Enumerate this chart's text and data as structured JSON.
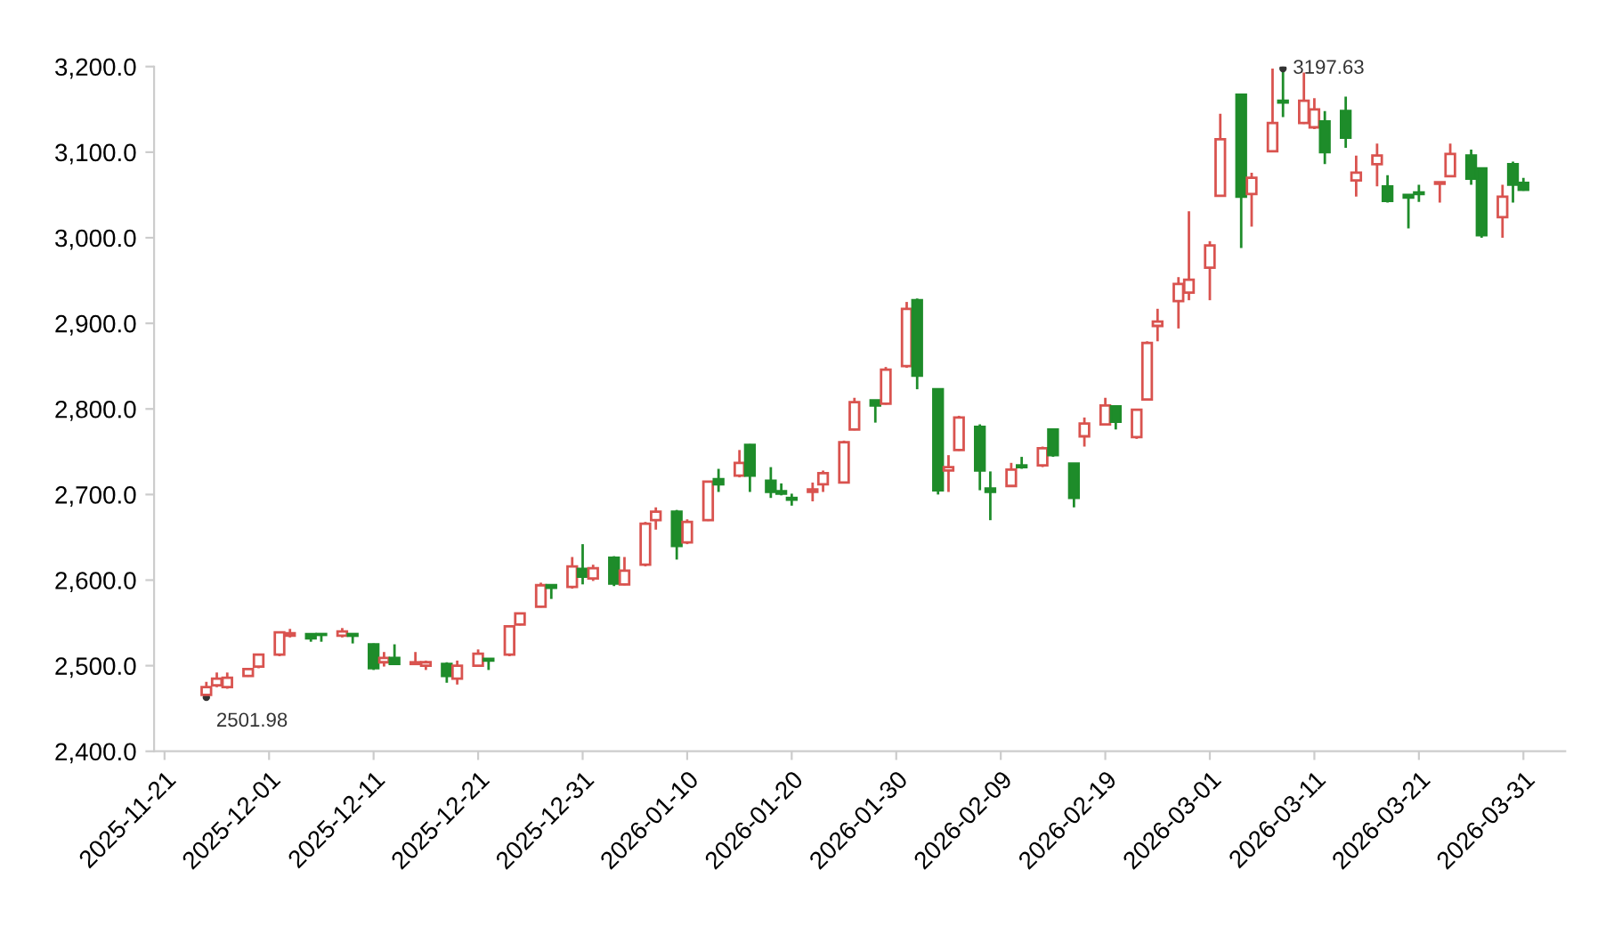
{
  "chart_data": {
    "type": "candlestick",
    "x": [
      "2025-11-25",
      "2025-11-26",
      "2025-11-27",
      "2025-11-29",
      "2025-11-30",
      "2025-12-02",
      "2025-12-03",
      "2025-12-05",
      "2025-12-06",
      "2025-12-08",
      "2025-12-09",
      "2025-12-11",
      "2025-12-12",
      "2025-12-13",
      "2025-12-15",
      "2025-12-16",
      "2025-12-18",
      "2025-12-19",
      "2025-12-21",
      "2025-12-22",
      "2025-12-24",
      "2025-12-25",
      "2025-12-27",
      "2025-12-28",
      "2025-12-30",
      "2025-12-31",
      "2026-01-01",
      "2026-01-03",
      "2026-01-04",
      "2026-01-06",
      "2026-01-07",
      "2026-01-09",
      "2026-01-10",
      "2026-01-12",
      "2026-01-13",
      "2026-01-15",
      "2026-01-16",
      "2026-01-18",
      "2026-01-19",
      "2026-01-20",
      "2026-01-22",
      "2026-01-23",
      "2026-01-25",
      "2026-01-26",
      "2026-01-28",
      "2026-01-29",
      "2026-01-31",
      "2026-02-01",
      "2026-02-03",
      "2026-02-04",
      "2026-02-05",
      "2026-02-07",
      "2026-02-08",
      "2026-02-10",
      "2026-02-11",
      "2026-02-13",
      "2026-02-14",
      "2026-02-16",
      "2026-02-17",
      "2026-02-19",
      "2026-02-20",
      "2026-02-22",
      "2026-02-23",
      "2026-02-24",
      "2026-02-26",
      "2026-02-27",
      "2026-03-01",
      "2026-03-02",
      "2026-03-04",
      "2026-03-05",
      "2026-03-07",
      "2026-03-08",
      "2026-03-10",
      "2026-03-11",
      "2026-03-12",
      "2026-03-14",
      "2026-03-15",
      "2026-03-17",
      "2026-03-18",
      "2026-03-20",
      "2026-03-21",
      "2026-03-23",
      "2026-03-24",
      "2026-03-26",
      "2026-03-27",
      "2026-03-29",
      "2026-03-30",
      "2026-03-31"
    ],
    "ohlc": [
      [
        2466,
        2481,
        2463,
        2475
      ],
      [
        2477,
        2492,
        2475,
        2485
      ],
      [
        2475,
        2492,
        2473,
        2486
      ],
      [
        2488,
        2497,
        2487,
        2496
      ],
      [
        2499,
        2514,
        2497,
        2513
      ],
      [
        2513,
        2540,
        2511,
        2539
      ],
      [
        2535,
        2543,
        2533,
        2538
      ],
      [
        2537,
        2537,
        2528,
        2532
      ],
      [
        2537,
        2537,
        2528,
        2536
      ],
      [
        2535,
        2544,
        2533,
        2540
      ],
      [
        2537,
        2537,
        2526,
        2535
      ],
      [
        2525,
        2526,
        2495,
        2497
      ],
      [
        2504,
        2516,
        2499,
        2509
      ],
      [
        2509,
        2525,
        2501,
        2502
      ],
      [
        2502,
        2516,
        2502,
        2504
      ],
      [
        2500,
        2506,
        2495,
        2504
      ],
      [
        2502,
        2504,
        2480,
        2488
      ],
      [
        2485,
        2506,
        2478,
        2500
      ],
      [
        2500,
        2519,
        2499,
        2514
      ],
      [
        2508,
        2508,
        2495,
        2506
      ],
      [
        2513,
        2547,
        2511,
        2546
      ],
      [
        2548,
        2562,
        2547,
        2561
      ],
      [
        2569,
        2597,
        2568,
        2594
      ],
      [
        2594,
        2594,
        2578,
        2591
      ],
      [
        2592,
        2627,
        2590,
        2616
      ],
      [
        2613,
        2642,
        2595,
        2604
      ],
      [
        2602,
        2618,
        2599,
        2614
      ],
      [
        2626,
        2628,
        2593,
        2596
      ],
      [
        2595,
        2627,
        2594,
        2611
      ],
      [
        2618,
        2668,
        2616,
        2666
      ],
      [
        2670,
        2685,
        2659,
        2680
      ],
      [
        2680,
        2682,
        2624,
        2640
      ],
      [
        2644,
        2671,
        2642,
        2668
      ],
      [
        2670,
        2716,
        2669,
        2715
      ],
      [
        2718,
        2730,
        2703,
        2712
      ],
      [
        2722,
        2752,
        2720,
        2737
      ],
      [
        2758,
        2759,
        2703,
        2722
      ],
      [
        2716,
        2732,
        2696,
        2703
      ],
      [
        2704,
        2713,
        2699,
        2701
      ],
      [
        2696,
        2701,
        2687,
        2694
      ],
      [
        2703,
        2714,
        2692,
        2706
      ],
      [
        2712,
        2728,
        2703,
        2725
      ],
      [
        2714,
        2763,
        2713,
        2761
      ],
      [
        2776,
        2813,
        2775,
        2808
      ],
      [
        2810,
        2810,
        2784,
        2804
      ],
      [
        2806,
        2849,
        2805,
        2846
      ],
      [
        2850,
        2925,
        2848,
        2917
      ],
      [
        2927,
        2929,
        2823,
        2839
      ],
      [
        2823,
        2823,
        2700,
        2705
      ],
      [
        2728,
        2746,
        2703,
        2732
      ],
      [
        2752,
        2792,
        2751,
        2790
      ],
      [
        2779,
        2782,
        2705,
        2728
      ],
      [
        2707,
        2727,
        2670,
        2703
      ],
      [
        2710,
        2737,
        2709,
        2729
      ],
      [
        2734,
        2744,
        2730,
        2732
      ],
      [
        2734,
        2756,
        2732,
        2754
      ],
      [
        2776,
        2776,
        2744,
        2746
      ],
      [
        2736,
        2736,
        2685,
        2696
      ],
      [
        2768,
        2790,
        2756,
        2783
      ],
      [
        2782,
        2813,
        2781,
        2804
      ],
      [
        2803,
        2803,
        2776,
        2785
      ],
      [
        2767,
        2799,
        2765,
        2799
      ],
      [
        2811,
        2879,
        2810,
        2877
      ],
      [
        2897,
        2917,
        2879,
        2902
      ],
      [
        2926,
        2954,
        2894,
        2946
      ],
      [
        2936,
        3031,
        2927,
        2951
      ],
      [
        2965,
        2996,
        2927,
        2991
      ],
      [
        3049,
        3145,
        3048,
        3115
      ],
      [
        3167,
        3167,
        2988,
        3048
      ],
      [
        3051,
        3076,
        3013,
        3070
      ],
      [
        3101,
        3197.63,
        3100,
        3134
      ],
      [
        3160,
        3195,
        3141,
        3158
      ],
      [
        3134,
        3193,
        3133,
        3160
      ],
      [
        3129,
        3163,
        3127,
        3150
      ],
      [
        3136,
        3148,
        3086,
        3100
      ],
      [
        3148,
        3165,
        3105,
        3117
      ],
      [
        3067,
        3096,
        3048,
        3076
      ],
      [
        3086,
        3110,
        3060,
        3096
      ],
      [
        3060,
        3073,
        3041,
        3043
      ],
      [
        3050,
        3050,
        3011,
        3047
      ],
      [
        3053,
        3062,
        3042,
        3051
      ],
      [
        3063,
        3065,
        3041,
        3065
      ],
      [
        3072,
        3110,
        3071,
        3098
      ],
      [
        3096,
        3103,
        3062,
        3069
      ],
      [
        3081,
        3081,
        3000,
        3003
      ],
      [
        3024,
        3062,
        3000,
        3048
      ],
      [
        3086,
        3089,
        3041,
        3062
      ],
      [
        3064,
        3070,
        3055,
        3056
      ]
    ],
    "colors": [
      "#d9534f",
      "#d9534f",
      "#d9534f",
      "#d9534f",
      "#d9534f",
      "#d9534f",
      "#d9534f",
      "#1e8c2a",
      "#1e8c2a",
      "#d9534f",
      "#1e8c2a",
      "#1e8c2a",
      "#d9534f",
      "#1e8c2a",
      "#d9534f",
      "#d9534f",
      "#1e8c2a",
      "#d9534f",
      "#d9534f",
      "#1e8c2a",
      "#d9534f",
      "#d9534f",
      "#d9534f",
      "#1e8c2a",
      "#d9534f",
      "#1e8c2a",
      "#d9534f",
      "#1e8c2a",
      "#d9534f",
      "#d9534f",
      "#d9534f",
      "#1e8c2a",
      "#d9534f",
      "#d9534f",
      "#1e8c2a",
      "#d9534f",
      "#1e8c2a",
      "#1e8c2a",
      "#1e8c2a",
      "#1e8c2a",
      "#d9534f",
      "#d9534f",
      "#d9534f",
      "#d9534f",
      "#1e8c2a",
      "#d9534f",
      "#d9534f",
      "#1e8c2a",
      "#1e8c2a",
      "#d9534f",
      "#d9534f",
      "#1e8c2a",
      "#1e8c2a",
      "#d9534f",
      "#1e8c2a",
      "#d9534f",
      "#1e8c2a",
      "#1e8c2a",
      "#d9534f",
      "#d9534f",
      "#1e8c2a",
      "#d9534f",
      "#d9534f",
      "#d9534f",
      "#d9534f",
      "#d9534f",
      "#d9534f",
      "#d9534f",
      "#1e8c2a",
      "#d9534f",
      "#d9534f",
      "#1e8c2a",
      "#d9534f",
      "#d9534f",
      "#1e8c2a",
      "#1e8c2a",
      "#d9534f",
      "#d9534f",
      "#1e8c2a",
      "#1e8c2a",
      "#1e8c2a",
      "#d9534f",
      "#d9534f",
      "#1e8c2a",
      "#1e8c2a",
      "#d9534f",
      "#1e8c2a",
      "#1e8c2a"
    ],
    "xlim": [
      "2025-11-20",
      "2026-04-04"
    ],
    "xticks": [
      "2025-11-21",
      "2025-12-01",
      "2025-12-11",
      "2025-12-21",
      "2025-12-31",
      "2026-01-10",
      "2026-01-20",
      "2026-01-30",
      "2026-02-09",
      "2026-02-19",
      "2026-03-01",
      "2026-03-11",
      "2026-03-21",
      "2026-03-31"
    ],
    "ylim": [
      2400,
      3200
    ],
    "yticks": [
      {
        "value": 2400,
        "label": "2,400.0"
      },
      {
        "value": 2500,
        "label": "2,500.0"
      },
      {
        "value": 2600,
        "label": "2,600.0"
      },
      {
        "value": 2700,
        "label": "2,700.0"
      },
      {
        "value": 2800,
        "label": "2,800.0"
      },
      {
        "value": 2900,
        "label": "2,900.0"
      },
      {
        "value": 3000,
        "label": "3,000.0"
      },
      {
        "value": 3100,
        "label": "3,100.0"
      },
      {
        "value": 3200,
        "label": "3,200.0"
      }
    ],
    "annotations": [
      {
        "text": "3197.63",
        "x": "2026-03-08",
        "y": 3197.63
      },
      {
        "text": "2501.98",
        "x": "2025-11-25",
        "y": 2463
      }
    ]
  }
}
